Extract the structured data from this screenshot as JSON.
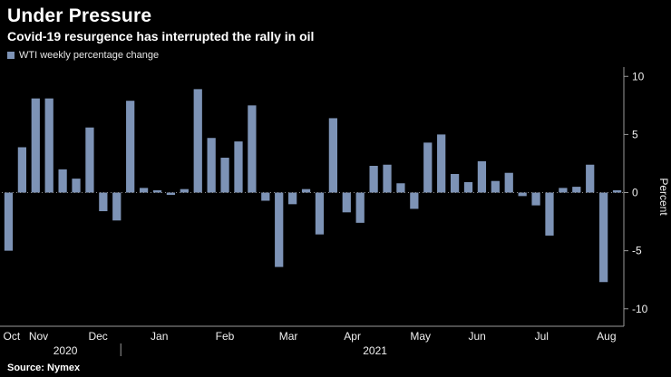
{
  "header": {
    "title": "Under Pressure",
    "subtitle": "Covid-19 resurgence has interrupted the rally in oil"
  },
  "legend": {
    "label": "WTI weekly percentage change",
    "marker_color": "#7d93b6"
  },
  "source": {
    "text": "Source: Nymex"
  },
  "colors": {
    "background": "#000000",
    "bar": "#7d93b6",
    "axis_line": "#9a9a9a",
    "zero_line": "#8a8a8a",
    "tick_text": "#f0f0f0"
  },
  "chart_data": {
    "type": "bar",
    "title": "Under Pressure",
    "series_name": "WTI weekly percentage change",
    "xlabel": "",
    "ylabel": "Percent",
    "unit": "percent",
    "ylim": [
      -11.5,
      10.8
    ],
    "yticks": [
      10,
      5,
      0,
      -5,
      -10
    ],
    "grid": "zero-line-dotted-only",
    "legend_position": "top-left",
    "values": [
      -5.0,
      3.9,
      8.1,
      8.1,
      2.0,
      1.2,
      5.6,
      -1.6,
      -2.4,
      7.9,
      0.4,
      0.2,
      -0.2,
      0.3,
      8.9,
      4.7,
      3.0,
      4.4,
      7.5,
      -0.7,
      -6.4,
      -1.0,
      0.3,
      -3.6,
      6.4,
      -1.7,
      -2.6,
      2.3,
      2.4,
      0.8,
      -1.4,
      4.3,
      5.0,
      1.6,
      0.9,
      2.7,
      1.0,
      1.7,
      -0.3,
      -1.1,
      -3.7,
      0.4,
      0.5,
      2.4,
      -7.7,
      0.2
    ],
    "x_month_ticks": [
      {
        "label": "Oct",
        "index": 0.1
      },
      {
        "label": "Nov",
        "index": 2.0
      },
      {
        "label": "Dec",
        "index": 6.4
      },
      {
        "label": "Jan",
        "index": 11.0
      },
      {
        "label": "Feb",
        "index": 15.8
      },
      {
        "label": "Mar",
        "index": 20.5
      },
      {
        "label": "Apr",
        "index": 25.3
      },
      {
        "label": "May",
        "index": 30.2
      },
      {
        "label": "Jun",
        "index": 34.5
      },
      {
        "label": "Jul",
        "index": 39.4
      },
      {
        "label": "Aug",
        "index": 44.0
      }
    ],
    "x_year_ticks": [
      {
        "label": "2020",
        "index": 4.7
      },
      {
        "label": "2021",
        "index": 27.6
      }
    ],
    "year_separator_index": 8.8
  }
}
